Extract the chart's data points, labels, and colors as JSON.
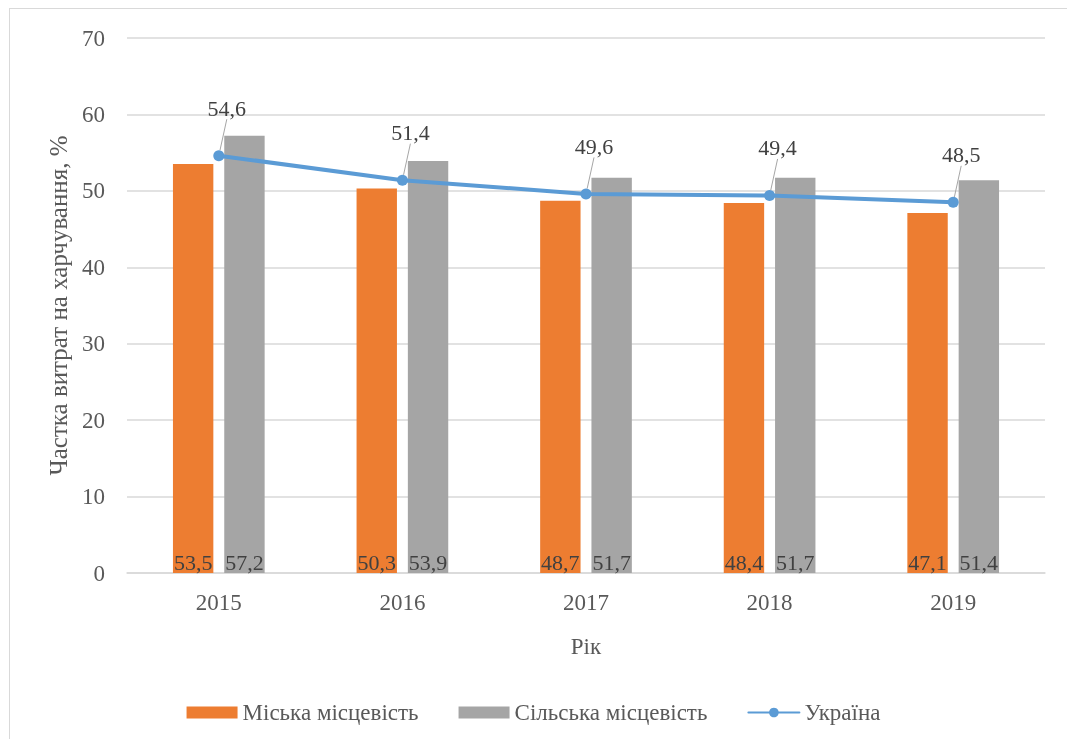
{
  "chart_data": {
    "type": "bar",
    "xlabel": "Рік",
    "ylabel": "Частка витрат на харчування, %",
    "categories": [
      "2015",
      "2016",
      "2017",
      "2018",
      "2019"
    ],
    "series": [
      {
        "name": "Міська місцевість",
        "color": "#ed7d31",
        "values": [
          53.5,
          50.3,
          48.7,
          48.4,
          47.1
        ],
        "value_labels": [
          "53,5",
          "50,3",
          "48,7",
          "48,4",
          "47,1"
        ]
      },
      {
        "name": "Сільська місцевість",
        "color": "#a5a5a5",
        "values": [
          57.2,
          53.9,
          51.7,
          51.7,
          51.4
        ],
        "value_labels": [
          "57,2",
          "53,9",
          "51,7",
          "51,7",
          "51,4"
        ]
      },
      {
        "name": "Україна",
        "type": "line",
        "color": "#5b9bd5",
        "values": [
          54.6,
          51.4,
          49.6,
          49.4,
          48.5
        ],
        "value_labels": [
          "54,6",
          "51,4",
          "49,6",
          "49,4",
          "48,5"
        ]
      }
    ],
    "ylim": [
      0,
      70
    ],
    "yticks": [
      0,
      10,
      20,
      30,
      40,
      50,
      60,
      70
    ],
    "grid": "y",
    "legend": "bottom",
    "marker": "circle",
    "line_style": "solid"
  }
}
